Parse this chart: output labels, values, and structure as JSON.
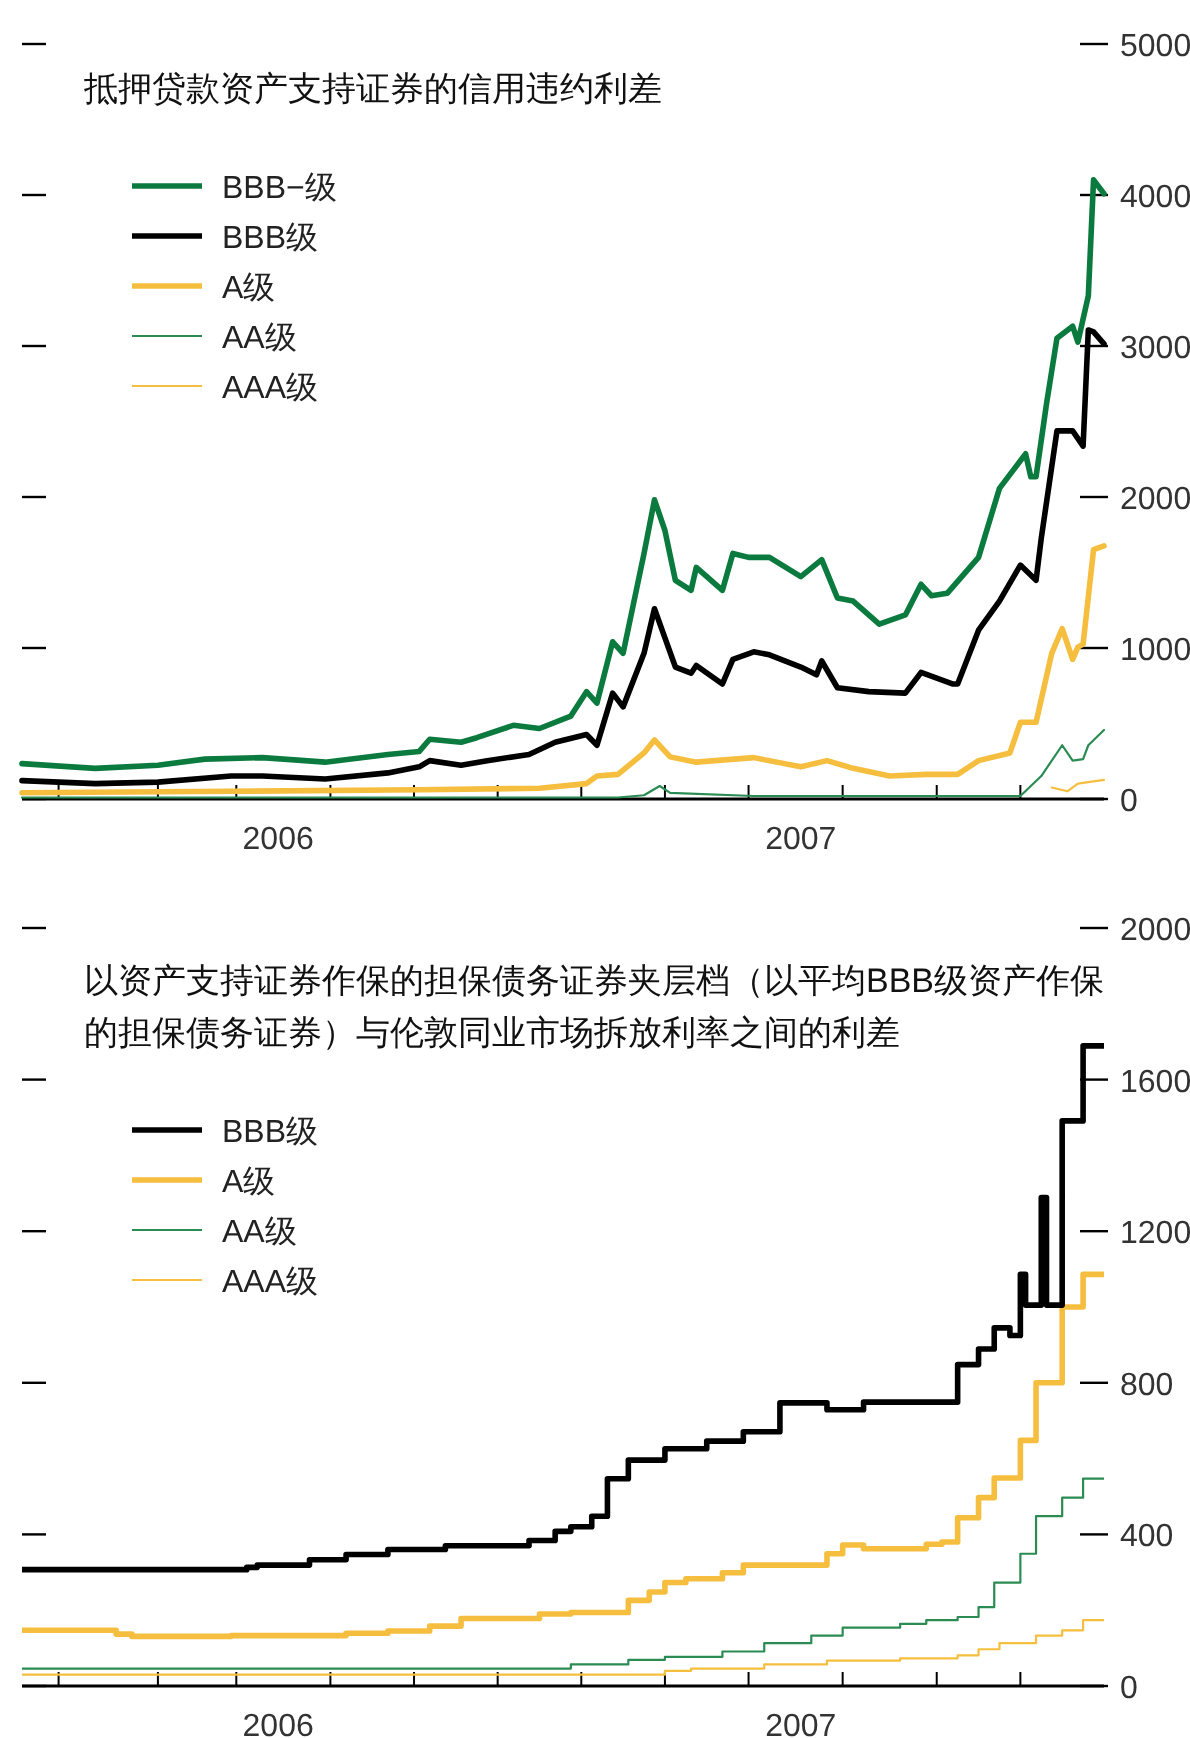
{
  "chart_data": [
    {
      "type": "line",
      "title": "抵押贷款资产支持证券的信用违约利差",
      "legend": "top left",
      "xlim": [
        2006.01,
        2008.08
      ],
      "ylim": [
        0,
        5000
      ],
      "yticks": [
        0,
        1000,
        2000,
        3000,
        4000,
        5000
      ],
      "xticks": [
        {
          "value": 2006.08,
          "label": null
        },
        {
          "value": 2006.27,
          "label": null
        },
        {
          "value": 2006.42,
          "label": null
        },
        {
          "value": 2006.5,
          "label": "2006"
        },
        {
          "value": 2006.6,
          "label": null
        },
        {
          "value": 2006.76,
          "label": null
        },
        {
          "value": 2006.92,
          "label": null
        },
        {
          "value": 2007.08,
          "label": null
        },
        {
          "value": 2007.24,
          "label": null
        },
        {
          "value": 2007.4,
          "label": null
        },
        {
          "value": 2007.5,
          "label": "2007"
        },
        {
          "value": 2007.58,
          "label": null
        },
        {
          "value": 2007.76,
          "label": null
        },
        {
          "value": 2007.92,
          "label": null
        }
      ],
      "series": [
        {
          "name": "BBB−级",
          "color": "#0b7a3e",
          "x": [
            2006.01,
            2006.15,
            2006.27,
            2006.36,
            2006.47,
            2006.59,
            2006.71,
            2006.77,
            2006.79,
            2006.85,
            2006.88,
            2006.95,
            2007.0,
            2007.06,
            2007.09,
            2007.11,
            2007.14,
            2007.16,
            2007.2,
            2007.22,
            2007.24,
            2007.26,
            2007.29,
            2007.3,
            2007.35,
            2007.37,
            2007.4,
            2007.44,
            2007.5,
            2007.54,
            2007.57,
            2007.6,
            2007.65,
            2007.7,
            2007.73,
            2007.75,
            2007.78,
            2007.84,
            2007.88,
            2007.93,
            2007.94,
            2007.95,
            2007.97,
            2007.99,
            2008.02,
            2008.03,
            2008.05,
            2008.06,
            2008.08
          ],
          "values": [
            234,
            203,
            224,
            264,
            274,
            244,
            295,
            315,
            396,
            376,
            406,
            488,
            467,
            549,
            711,
            635,
            1041,
            965,
            1626,
            1981,
            1778,
            1448,
            1382,
            1534,
            1382,
            1626,
            1600,
            1600,
            1473,
            1585,
            1331,
            1311,
            1158,
            1219,
            1422,
            1346,
            1362,
            1600,
            2057,
            2286,
            2134,
            2134,
            2617,
            3052,
            3131,
            3026,
            3332,
            4100,
            4008
          ]
        },
        {
          "name": "BBB级",
          "color": "#000000",
          "x": [
            2006.01,
            2006.15,
            2006.27,
            2006.41,
            2006.47,
            2006.59,
            2006.71,
            2006.77,
            2006.79,
            2006.85,
            2006.9,
            2006.98,
            2007.03,
            2007.09,
            2007.11,
            2007.14,
            2007.16,
            2007.2,
            2007.22,
            2007.24,
            2007.26,
            2007.29,
            2007.3,
            2007.35,
            2007.37,
            2007.41,
            2007.44,
            2007.5,
            2007.53,
            2007.54,
            2007.57,
            2007.63,
            2007.7,
            2007.73,
            2007.79,
            2007.8,
            2007.84,
            2007.88,
            2007.92,
            2007.95,
            2007.96,
            2007.99,
            2008.02,
            2008.04,
            2008.05,
            2008.06,
            2008.08
          ],
          "values": [
            122,
            102,
            112,
            152,
            152,
            132,
            173,
            213,
            254,
            224,
            254,
            295,
            376,
            427,
            356,
            701,
            610,
            965,
            1260,
            1067,
            874,
            833,
            884,
            762,
            925,
            975,
            955,
            874,
            823,
            914,
            737,
            711,
            701,
            838,
            762,
            762,
            1118,
            1311,
            1549,
            1448,
            1727,
            2438,
            2438,
            2337,
            3106,
            3093,
            3014
          ]
        },
        {
          "name": "A级",
          "color": "#f6be3f",
          "x": [
            2006.01,
            2006.41,
            2006.77,
            2007.0,
            2007.09,
            2007.11,
            2007.15,
            2007.2,
            2007.22,
            2007.25,
            2007.3,
            2007.41,
            2007.5,
            2007.55,
            2007.6,
            2007.67,
            2007.74,
            2007.8,
            2007.84,
            2007.9,
            2007.92,
            2007.95,
            2007.98,
            2008.0,
            2008.02,
            2008.03,
            2008.04,
            2008.06,
            2008.08
          ],
          "values": [
            41,
            51,
            61,
            71,
            102,
            152,
            163,
            305,
            391,
            279,
            244,
            274,
            213,
            254,
            203,
            152,
            163,
            163,
            254,
            305,
            508,
            508,
            965,
            1128,
            925,
            1006,
            1026,
            1651,
            1676
          ]
        },
        {
          "name": "AA级",
          "color": "#2a8c52",
          "x": [
            2006.01,
            2007.15,
            2007.2,
            2007.23,
            2007.25,
            2007.41,
            2007.92,
            2007.96,
            2008.0,
            2008.02,
            2008.04,
            2008.05,
            2008.08
          ],
          "values": [
            10,
            10,
            25,
            86,
            41,
            20,
            20,
            152,
            356,
            254,
            264,
            356,
            457
          ]
        },
        {
          "name": "AAA级",
          "color": "#f6be3f",
          "x": [
            2007.98,
            2008.01,
            2008.03,
            2008.08
          ],
          "values": [
            76,
            51,
            102,
            127
          ]
        }
      ]
    },
    {
      "type": "step",
      "title": "以资产支持证券作保的担保债务证券夹层档（以平均BBB级资产作保的担保债务证券）与伦敦同业市场拆放利率之间的利差",
      "legend": "top left",
      "xlim": [
        2006.01,
        2008.08
      ],
      "ylim": [
        0,
        2000
      ],
      "yticks": [
        0,
        400,
        800,
        1200,
        1600,
        2000
      ],
      "xticks": [
        {
          "value": 2006.08,
          "label": null
        },
        {
          "value": 2006.27,
          "label": null
        },
        {
          "value": 2006.42,
          "label": null
        },
        {
          "value": 2006.5,
          "label": "2006"
        },
        {
          "value": 2006.6,
          "label": null
        },
        {
          "value": 2006.76,
          "label": null
        },
        {
          "value": 2006.92,
          "label": null
        },
        {
          "value": 2007.08,
          "label": null
        },
        {
          "value": 2007.24,
          "label": null
        },
        {
          "value": 2007.4,
          "label": null
        },
        {
          "value": 2007.5,
          "label": "2007"
        },
        {
          "value": 2007.58,
          "label": null
        },
        {
          "value": 2007.76,
          "label": null
        },
        {
          "value": 2007.92,
          "label": null
        }
      ],
      "series": [
        {
          "name": "BBB级",
          "color": "#000000",
          "x": [
            2006.01,
            2006.44,
            2006.46,
            2006.56,
            2006.63,
            2006.71,
            2006.82,
            2006.98,
            2007.03,
            2007.06,
            2007.1,
            2007.13,
            2007.17,
            2007.24,
            2007.32,
            2007.39,
            2007.46,
            2007.55,
            2007.62,
            2007.8,
            2007.84,
            2007.87,
            2007.9,
            2007.92,
            2007.93,
            2007.94,
            2007.96,
            2007.97,
            2008.0,
            2008.04,
            2008.08
          ],
          "values": [
            307,
            313,
            319,
            333,
            347,
            360,
            370,
            384,
            408,
            420,
            448,
            547,
            596,
            626,
            646,
            671,
            747,
            729,
            749,
            848,
            889,
            945,
            925,
            1086,
            1005,
            1005,
            1289,
            1005,
            1491,
            1689,
            1689
          ]
        },
        {
          "name": "A级",
          "color": "#f6be3f",
          "x": [
            2006.01,
            2006.11,
            2006.19,
            2006.22,
            2006.41,
            2006.63,
            2006.71,
            2006.79,
            2006.85,
            2007.0,
            2007.06,
            2007.17,
            2007.21,
            2007.24,
            2007.28,
            2007.35,
            2007.39,
            2007.55,
            2007.58,
            2007.62,
            2007.74,
            2007.77,
            2007.8,
            2007.84,
            2007.87,
            2007.92,
            2007.95,
            2008.0,
            2008.04,
            2008.08
          ],
          "values": [
            147,
            147,
            137,
            131,
            133,
            139,
            145,
            158,
            178,
            190,
            194,
            226,
            248,
            273,
            283,
            299,
            319,
            349,
            372,
            362,
            374,
            380,
            444,
            497,
            549,
            648,
            800,
            1000,
            1086,
            1086
          ]
        },
        {
          "name": "AA级",
          "color": "#2a8c52",
          "x": [
            2006.01,
            2006.98,
            2007.06,
            2007.17,
            2007.24,
            2007.35,
            2007.43,
            2007.52,
            2007.58,
            2007.69,
            2007.74,
            2007.8,
            2007.84,
            2007.87,
            2007.92,
            2007.95,
            2008.0,
            2008.04,
            2008.08
          ],
          "values": [
            46,
            46,
            57,
            69,
            77,
            91,
            113,
            133,
            154,
            164,
            174,
            182,
            208,
            273,
            349,
            448,
            497,
            547,
            547
          ]
        },
        {
          "name": "AAA级",
          "color": "#f6be3f",
          "x": [
            2006.01,
            2007.19,
            2007.24,
            2007.29,
            2007.43,
            2007.55,
            2007.69,
            2007.8,
            2007.84,
            2007.88,
            2007.95,
            2008.0,
            2008.04,
            2008.08
          ],
          "values": [
            30,
            30,
            40,
            46,
            57,
            67,
            73,
            81,
            97,
            113,
            133,
            147,
            174,
            174
          ]
        }
      ]
    }
  ]
}
